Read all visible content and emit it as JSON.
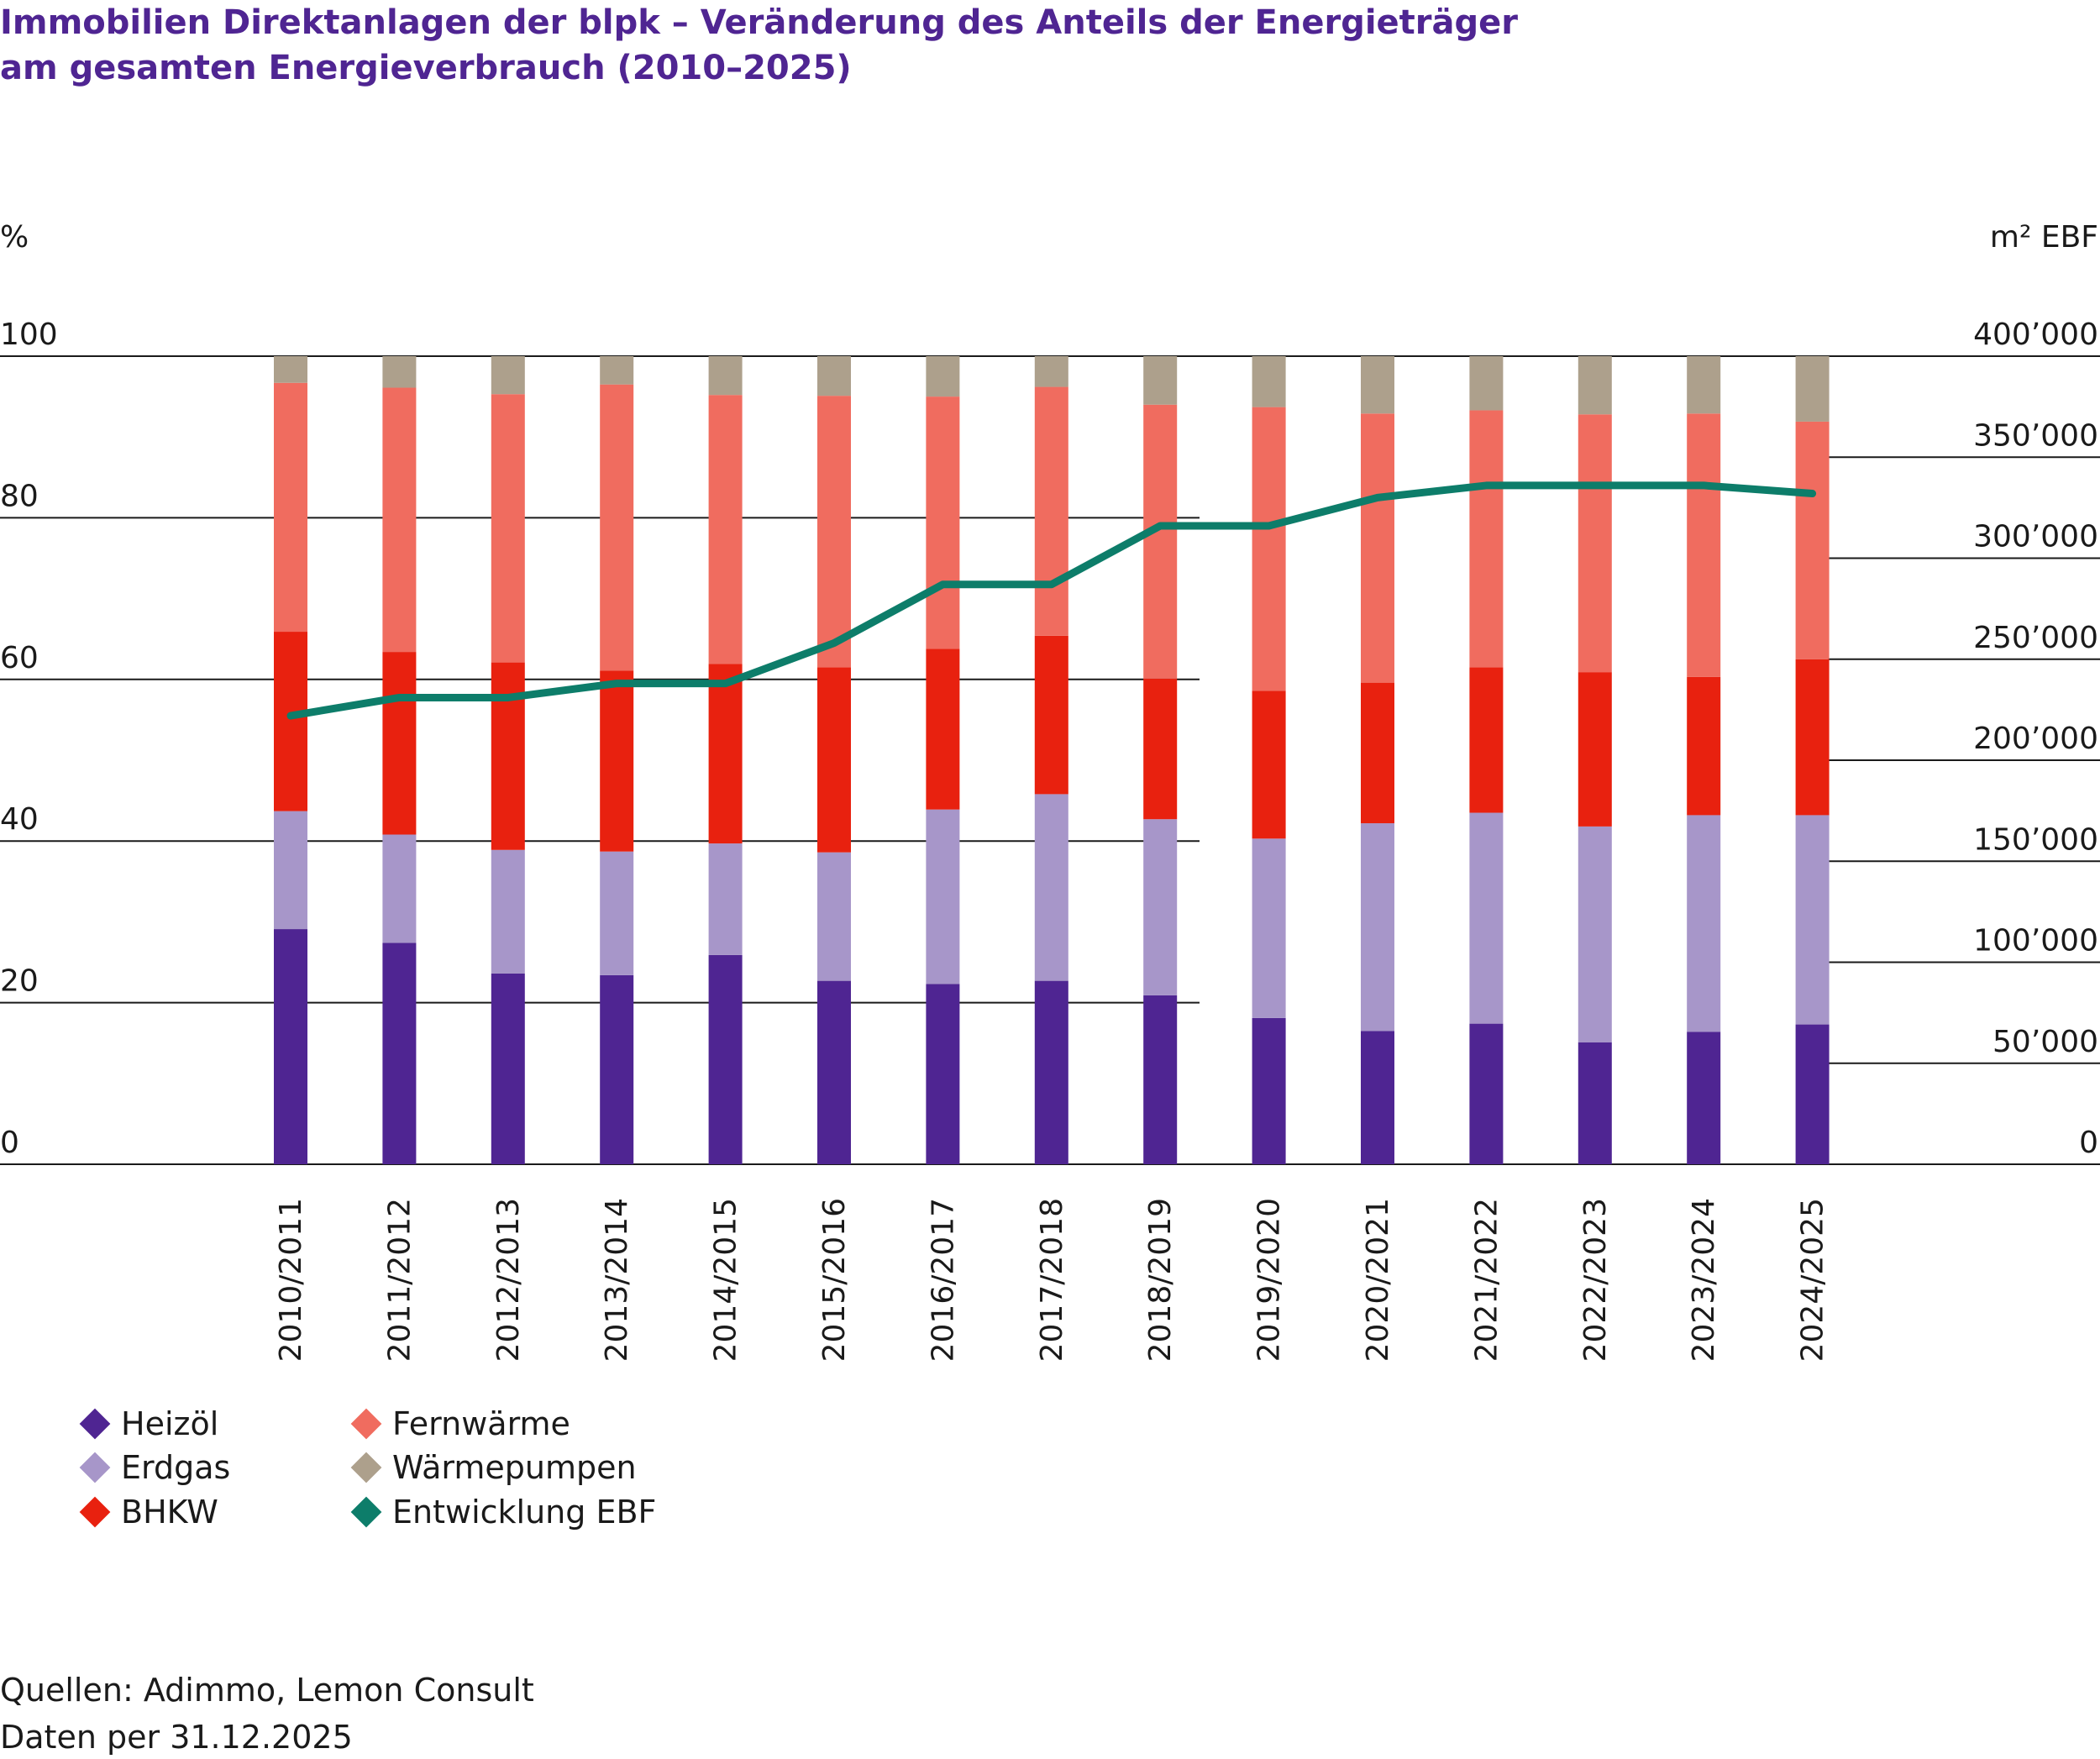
{
  "title": {
    "line1": "Immobilien Direktanlagen der blpk – Veränderung des Anteils der Energieträger",
    "line2": "am gesamten Energieverbrauch (2010–2025)"
  },
  "colors": {
    "title": "#4f2592",
    "Heizöl": "#4f2592",
    "Erdgas": "#a796c9",
    "BHKW": "#e8210f",
    "Fernwärme": "#f06c5f",
    "Wärmepumpen": "#ada08c",
    "Entwicklung EBF": "#0d7d6a"
  },
  "source": {
    "line1": "Quellen: Adimmo, Lemon Consult",
    "line2": "Daten per 31.12.2025"
  },
  "legend": [
    {
      "label": "Heizöl",
      "color": "#4f2592",
      "icon": "diamond"
    },
    {
      "label": "Erdgas",
      "color": "#a796c9",
      "icon": "diamond"
    },
    {
      "label": "BHKW",
      "color": "#e8210f",
      "icon": "diamond"
    },
    {
      "label": "Fernwärme",
      "color": "#f06c5f",
      "icon": "diamond"
    },
    {
      "label": "Wärmepumpen",
      "color": "#ada08c",
      "icon": "diamond"
    },
    {
      "label": "Entwicklung EBF",
      "color": "#0d7d6a",
      "icon": "diamond"
    }
  ],
  "chart_data": {
    "type": "bar",
    "stacked": true,
    "xlabel": "",
    "ylabel_left": "%",
    "ylabel_right": "m² EBF",
    "ylim_left": [
      0,
      100
    ],
    "ylim_right": [
      0,
      400000
    ],
    "left_ticks": [
      "0",
      "20",
      "40",
      "60",
      "80",
      "100"
    ],
    "right_ticks": [
      "0",
      "50’000",
      "100’000",
      "150’000",
      "200’000",
      "250’000",
      "300’000",
      "350’000",
      "400’000"
    ],
    "grid": true,
    "legend_position": "bottom-left",
    "categories": [
      "2010/2011",
      "2011/2012",
      "2012/2013",
      "2013/2014",
      "2014/2015",
      "2015/2016",
      "2016/2017",
      "2017/2018",
      "2018/2019",
      "2019/2020",
      "2020/2021",
      "2021/2022",
      "2022/2023",
      "2023/2024",
      "2024/2025"
    ],
    "series": [
      {
        "name": "Heizöl",
        "axis": "left",
        "color": "#4f2592",
        "values": [
          29.1,
          27.4,
          23.6,
          23.4,
          25.9,
          22.7,
          22.3,
          22.7,
          20.9,
          18.1,
          16.5,
          17.4,
          15.1,
          16.4,
          17.3
        ]
      },
      {
        "name": "Erdgas",
        "axis": "left",
        "color": "#a796c9",
        "values": [
          14.6,
          13.4,
          15.3,
          15.3,
          13.8,
          15.9,
          21.6,
          23.1,
          21.8,
          22.2,
          25.7,
          26.1,
          26.7,
          26.8,
          25.9
        ]
      },
      {
        "name": "BHKW",
        "axis": "left",
        "color": "#e8210f",
        "values": [
          22.2,
          22.6,
          23.2,
          22.4,
          22.2,
          22.9,
          19.9,
          19.6,
          17.4,
          18.3,
          17.4,
          18.0,
          19.1,
          17.1,
          19.3
        ]
      },
      {
        "name": "Fernwärme",
        "axis": "left",
        "color": "#f06c5f",
        "values": [
          30.8,
          32.7,
          33.2,
          35.4,
          33.3,
          33.6,
          31.2,
          30.8,
          33.9,
          35.1,
          33.3,
          31.8,
          31.9,
          32.6,
          29.4
        ]
      },
      {
        "name": "Wärmepumpen",
        "axis": "left",
        "color": "#ada08c",
        "values": [
          3.3,
          3.9,
          4.7,
          3.5,
          4.8,
          4.9,
          5.0,
          3.8,
          6.0,
          6.3,
          7.1,
          6.7,
          7.2,
          7.1,
          8.1
        ]
      }
    ],
    "line_series": {
      "name": "Entwicklung EBF",
      "axis": "right",
      "color": "#0d7d6a",
      "values": [
        222000,
        231000,
        231000,
        238000,
        238000,
        258000,
        287000,
        287000,
        316000,
        316000,
        330000,
        336000,
        336000,
        336000,
        332000
      ]
    }
  }
}
